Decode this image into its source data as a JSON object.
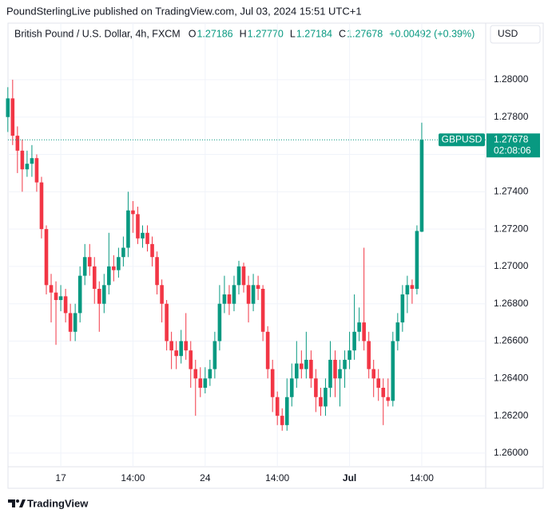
{
  "header": {
    "publisher": "PoundSterlingLive published on TradingView.com, Jul 03, 2024 15:51 UTC+1",
    "symbol": "British Pound / U.S. Dollar, 4h, FXCM",
    "ohlc": [
      {
        "label": "O",
        "value": "1.27186"
      },
      {
        "label": "H",
        "value": "1.27770"
      },
      {
        "label": "L",
        "value": "1.27184"
      },
      {
        "label": "C",
        "value": "1.27678"
      }
    ],
    "change": "+0.00492 (+0.39%)",
    "currency": "USD",
    "footer": "TradingView"
  },
  "chart_data": {
    "type": "candlestick",
    "categories": [
      null,
      null,
      null,
      null,
      null,
      null,
      null,
      null,
      null,
      null,
      null,
      "17",
      null,
      null,
      null,
      null,
      null,
      null,
      null,
      null,
      null,
      null,
      null,
      null,
      null,
      null,
      "14:00",
      null,
      null,
      null,
      null,
      null,
      null,
      null,
      null,
      null,
      null,
      null,
      null,
      null,
      null,
      "24",
      null,
      null,
      null,
      null,
      null,
      null,
      null,
      null,
      null,
      null,
      null,
      null,
      null,
      null,
      "14:00",
      null,
      null,
      null,
      null,
      null,
      null,
      null,
      null,
      null,
      null,
      null,
      null,
      null,
      null,
      "Jul",
      null,
      null,
      null,
      null,
      null,
      null,
      null,
      null,
      null,
      null,
      null,
      null,
      null,
      null,
      "14:00"
    ],
    "open": [
      1.278,
      1.279,
      1.277,
      1.2762,
      1.2752,
      1.2755,
      1.2758,
      1.2745,
      1.272,
      1.269,
      1.2686,
      1.2682,
      1.2684,
      1.2675,
      1.2665,
      1.2675,
      1.2695,
      1.2705,
      1.27,
      1.2688,
      1.268,
      1.269,
      1.27,
      1.2698,
      1.2705,
      1.271,
      1.273,
      1.2728,
      1.2715,
      1.2718,
      1.2712,
      1.2705,
      1.269,
      1.268,
      1.266,
      1.2655,
      1.2652,
      1.266,
      1.2655,
      1.2645,
      1.264,
      1.2635,
      1.264,
      1.2645,
      1.266,
      1.268,
      1.2685,
      1.268,
      1.269,
      1.27,
      1.269,
      1.268,
      1.269,
      1.2688,
      1.2665,
      1.2645,
      1.263,
      1.262,
      1.2615,
      1.263,
      1.264,
      1.2648,
      1.2645,
      1.265,
      1.264,
      1.263,
      1.2625,
      1.2635,
      1.265,
      1.264,
      1.2645,
      1.265,
      1.2655,
      1.2665,
      1.267,
      1.266,
      1.2645,
      1.264,
      1.2635,
      1.263,
      1.2628,
      1.266,
      1.267,
      1.2685,
      1.269,
      1.2688,
      1.27186
    ],
    "high": [
      1.2796,
      1.28,
      1.2775,
      1.2768,
      1.2762,
      1.2765,
      1.276,
      1.2748,
      1.2722,
      1.2696,
      1.2692,
      1.269,
      1.2688,
      1.268,
      1.268,
      1.27,
      1.2712,
      1.2712,
      1.2705,
      1.2692,
      1.2696,
      1.2718,
      1.2706,
      1.271,
      1.2716,
      1.274,
      1.2735,
      1.2732,
      1.2722,
      1.2722,
      1.2716,
      1.2708,
      1.2693,
      1.2682,
      1.2665,
      1.266,
      1.2666,
      1.2675,
      1.266,
      1.265,
      1.2646,
      1.2646,
      1.265,
      1.2665,
      1.269,
      1.2695,
      1.269,
      1.2695,
      1.2703,
      1.2702,
      1.2695,
      1.2696,
      1.2695,
      1.269,
      1.2668,
      1.265,
      1.2633,
      1.2624,
      1.264,
      1.2648,
      1.266,
      1.2655,
      1.2665,
      1.2655,
      1.2645,
      1.2635,
      1.264,
      1.266,
      1.2655,
      1.265,
      1.2655,
      1.2665,
      1.2685,
      1.2678,
      1.271,
      1.2665,
      1.265,
      1.2645,
      1.264,
      1.264,
      1.2665,
      1.2675,
      1.269,
      1.2695,
      1.2693,
      1.2722,
      1.2777
    ],
    "low": [
      1.2772,
      1.2765,
      1.275,
      1.274,
      1.2748,
      1.2748,
      1.274,
      1.2715,
      1.2685,
      1.267,
      1.2658,
      1.2676,
      1.267,
      1.266,
      1.266,
      1.267,
      1.269,
      1.2695,
      1.268,
      1.2665,
      1.2675,
      1.2685,
      1.2692,
      1.2694,
      1.27,
      1.2705,
      1.2718,
      1.2712,
      1.271,
      1.2708,
      1.27,
      1.2685,
      1.267,
      1.2655,
      1.2645,
      1.2645,
      1.2648,
      1.265,
      1.2635,
      1.262,
      1.263,
      1.2632,
      1.2636,
      1.264,
      1.2655,
      1.2675,
      1.2674,
      1.2676,
      1.2685,
      1.2686,
      1.267,
      1.2676,
      1.2682,
      1.266,
      1.264,
      1.2622,
      1.2615,
      1.2612,
      1.2612,
      1.2625,
      1.2635,
      1.264,
      1.264,
      1.2635,
      1.2622,
      1.262,
      1.262,
      1.263,
      1.263,
      1.2625,
      1.2635,
      1.2645,
      1.265,
      1.266,
      1.2655,
      1.264,
      1.263,
      1.2628,
      1.2615,
      1.2625,
      1.2625,
      1.2655,
      1.2665,
      1.2675,
      1.268,
      1.2685,
      1.27184
    ],
    "close": [
      1.279,
      1.277,
      1.2762,
      1.2752,
      1.2755,
      1.2758,
      1.2745,
      1.272,
      1.269,
      1.2686,
      1.2682,
      1.2684,
      1.2675,
      1.2665,
      1.2675,
      1.2695,
      1.2705,
      1.27,
      1.2688,
      1.268,
      1.269,
      1.27,
      1.2698,
      1.2705,
      1.271,
      1.273,
      1.2728,
      1.2715,
      1.2718,
      1.2712,
      1.2705,
      1.269,
      1.268,
      1.266,
      1.2655,
      1.2652,
      1.266,
      1.2655,
      1.2645,
      1.264,
      1.2635,
      1.264,
      1.2645,
      1.266,
      1.268,
      1.2685,
      1.268,
      1.269,
      1.27,
      1.269,
      1.268,
      1.269,
      1.2688,
      1.2665,
      1.2645,
      1.263,
      1.262,
      1.2615,
      1.263,
      1.264,
      1.2648,
      1.2645,
      1.265,
      1.264,
      1.263,
      1.2625,
      1.2635,
      1.265,
      1.264,
      1.2645,
      1.265,
      1.2655,
      1.2665,
      1.267,
      1.266,
      1.2645,
      1.264,
      1.2635,
      1.263,
      1.2628,
      1.266,
      1.267,
      1.2685,
      1.269,
      1.2688,
      1.2719,
      1.27678
    ],
    "up_color": "#089981",
    "down_color": "#f23645",
    "ylim": [
      1.25927,
      1.28192
    ],
    "yticks": [
      {
        "value": 1.26,
        "label": "1.26000"
      },
      {
        "value": 1.262,
        "label": "1.26200"
      },
      {
        "value": 1.264,
        "label": "1.26400"
      },
      {
        "value": 1.266,
        "label": "1.26600"
      },
      {
        "value": 1.268,
        "label": "1.26800"
      },
      {
        "value": 1.27,
        "label": "1.27000"
      },
      {
        "value": 1.272,
        "label": "1.27200"
      },
      {
        "value": 1.274,
        "label": "1.27400"
      },
      {
        "value": 1.276,
        "label": "1.27600"
      },
      {
        "value": 1.278,
        "label": "1.27800"
      },
      {
        "value": 1.28,
        "label": "1.28000"
      }
    ],
    "grid": true,
    "last_symbol": "GBPUSD",
    "last_price_label": "1.27678",
    "countdown": "02:08:06"
  }
}
